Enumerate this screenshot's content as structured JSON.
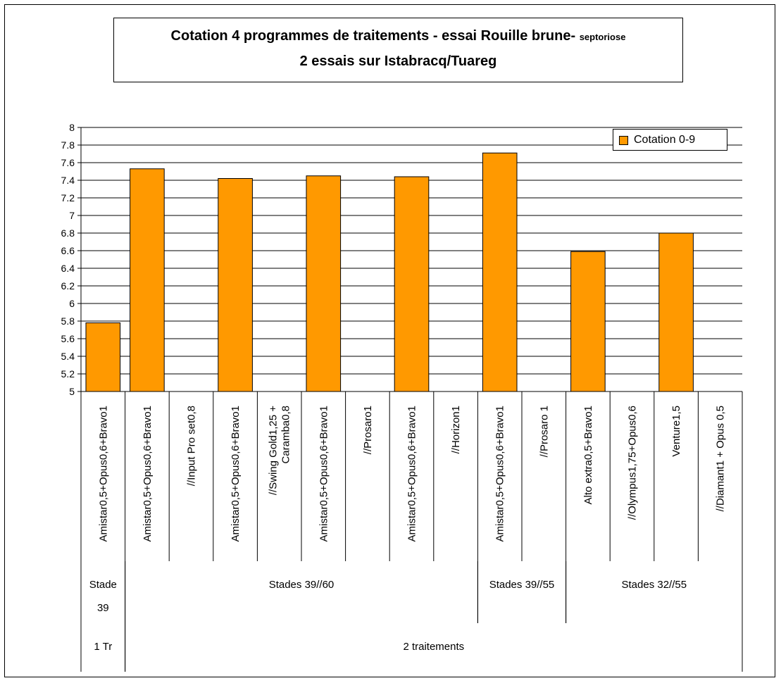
{
  "chart_data": {
    "type": "bar",
    "title": "Cotation 4  programmes de traitements - essai Rouille brune-",
    "title_suffix": "septoriose",
    "subtitle": "2 essais sur Istabracq/Tuareg",
    "ylim": [
      5,
      8
    ],
    "yticks": [
      "5",
      "5.2",
      "5.4",
      "5.6",
      "5.8",
      "6",
      "6.2",
      "6.4",
      "6.6",
      "6.8",
      "7",
      "7.2",
      "7.4",
      "7.6",
      "7.8",
      "8"
    ],
    "grid": true,
    "legend_position": "top-right",
    "series": [
      {
        "name": "Cotation 0-9",
        "color": "#ff9900"
      }
    ],
    "categories": [
      [
        "Amistar0,5+Opus0,6+Bravo1"
      ],
      [
        "Amistar0,5+Opus0,6+Bravo1"
      ],
      [
        "//Input Pro set0,8"
      ],
      [
        "Amistar0,5+Opus0,6+Bravo1"
      ],
      [
        "//Swing Gold1,25 +",
        "Caramba0,8"
      ],
      [
        "Amistar0,5+Opus0,6+Bravo1"
      ],
      [
        "//Prosaro1"
      ],
      [
        "Amistar0,5+Opus0,6+Bravo1"
      ],
      [
        "//Horizon1"
      ],
      [
        "Amistar0,5+Opus0,6+Bravo1"
      ],
      [
        "//Prosaro 1"
      ],
      [
        "Alto extra0,5+Bravo1"
      ],
      [
        "//Olympus1,75+Opus0,6"
      ],
      [
        "Venture1,5"
      ],
      [
        "//Diamant1 + Opus 0,5"
      ]
    ],
    "values": [
      5.78,
      7.53,
      null,
      7.42,
      null,
      7.45,
      null,
      7.44,
      null,
      7.71,
      null,
      6.59,
      null,
      6.8,
      null
    ],
    "group_level1": [
      {
        "lines": [
          "Stade",
          "39"
        ],
        "start": 0,
        "span": 1
      },
      {
        "lines": [
          "Stades 39//60"
        ],
        "start": 1,
        "span": 8
      },
      {
        "lines": [
          "Stades 39//55"
        ],
        "start": 9,
        "span": 2
      },
      {
        "lines": [
          "Stades 32//55"
        ],
        "start": 11,
        "span": 4
      }
    ],
    "group_level2": [
      {
        "lines": [
          "1 Tr"
        ],
        "start": 0,
        "span": 1
      },
      {
        "lines": [
          "2 traitements"
        ],
        "start": 1,
        "span": 14
      }
    ]
  }
}
